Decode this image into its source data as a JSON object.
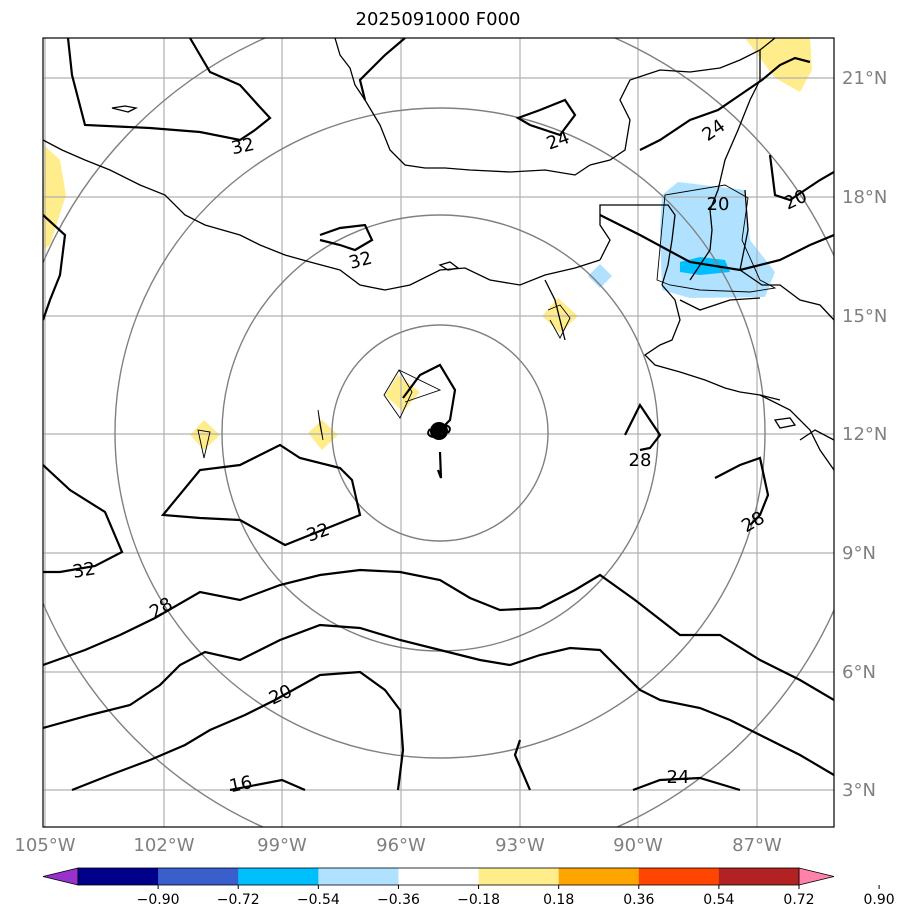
{
  "title": "2025091000 F000",
  "map": {
    "lat_labels": [
      "21°N",
      "18°N",
      "15°N",
      "12°N",
      "9°N",
      "6°N",
      "3°N"
    ],
    "lon_labels": [
      "105°W",
      "102°W",
      "99°W",
      "96°W",
      "93°W",
      "90°W",
      "87°W"
    ],
    "contour_labels": [
      "32",
      "24",
      "24",
      "20",
      "20",
      "32",
      "28",
      "28",
      "32",
      "32",
      "28",
      "20",
      "16",
      "24"
    ],
    "range_rings": "concentric circles around storm center",
    "storm_center": "symbol at ~12°N 95°W"
  },
  "colorbar": {
    "ticks": [
      "−0.90",
      "−0.72",
      "−0.54",
      "−0.36",
      "−0.18",
      "0.18",
      "0.36",
      "0.54",
      "0.72",
      "0.90"
    ],
    "colors": [
      "#9932cc",
      "#00008b",
      "#3a5fcd",
      "#00bfff",
      "#b0e2ff",
      "#ffffff",
      "#ffec8b",
      "#ffa500",
      "#ff4500",
      "#b22222",
      "#ff82ab"
    ]
  }
}
